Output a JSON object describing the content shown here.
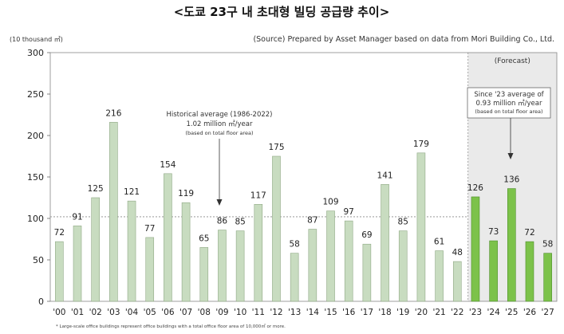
{
  "chart_data": {
    "type": "bar",
    "title": "<도쿄 23구 내 초대형 빌딩 공급량 추이>",
    "unit_label": "(10 thousand ㎡)",
    "source": "(Source) Prepared by Asset Manager based on data from Mori Building Co., Ltd.",
    "categories": [
      "'00",
      "'01",
      "'02",
      "'03",
      "'04",
      "'05",
      "'06",
      "'07",
      "'08",
      "'09",
      "'10",
      "'11",
      "'12",
      "'13",
      "'14",
      "'15",
      "'16",
      "'17",
      "'18",
      "'19",
      "'20",
      "'21",
      "'22",
      "'23",
      "'24",
      "'25",
      "'26",
      "'27"
    ],
    "series": [
      {
        "values": [
          72,
          91,
          125,
          216,
          121,
          77,
          154,
          119,
          65,
          86,
          85,
          117,
          175,
          58,
          87,
          109,
          97,
          69,
          141,
          85,
          179,
          61,
          48,
          126,
          73,
          136,
          72,
          58
        ],
        "forecast_from_index": 23
      }
    ],
    "ylim": [
      0,
      300
    ],
    "yticks": [
      0,
      50,
      100,
      150,
      200,
      250,
      300
    ],
    "reference_line": 102,
    "forecast_label": "(Forecast)",
    "annotation_hist": [
      "Historical average (1986-2022)",
      "1.02 million ㎡/year",
      "(based on total floor area)"
    ],
    "annotation_forecast": [
      "Since '23 average of",
      "0.93 million ㎡/year",
      "(based on total floor area)"
    ],
    "footnote": "* Large-scale office buildings represent office buildings with a total office floor area of 10,000㎡ or more.",
    "colors": {
      "historical": "#c8dcc0",
      "historical_stroke": "#8fa884",
      "forecast": "#7cc24a",
      "forecast_stroke": "#4e8f2a",
      "forecast_bg": "#eaeaea",
      "avg_line": "#888888"
    },
    "grid": false
  }
}
